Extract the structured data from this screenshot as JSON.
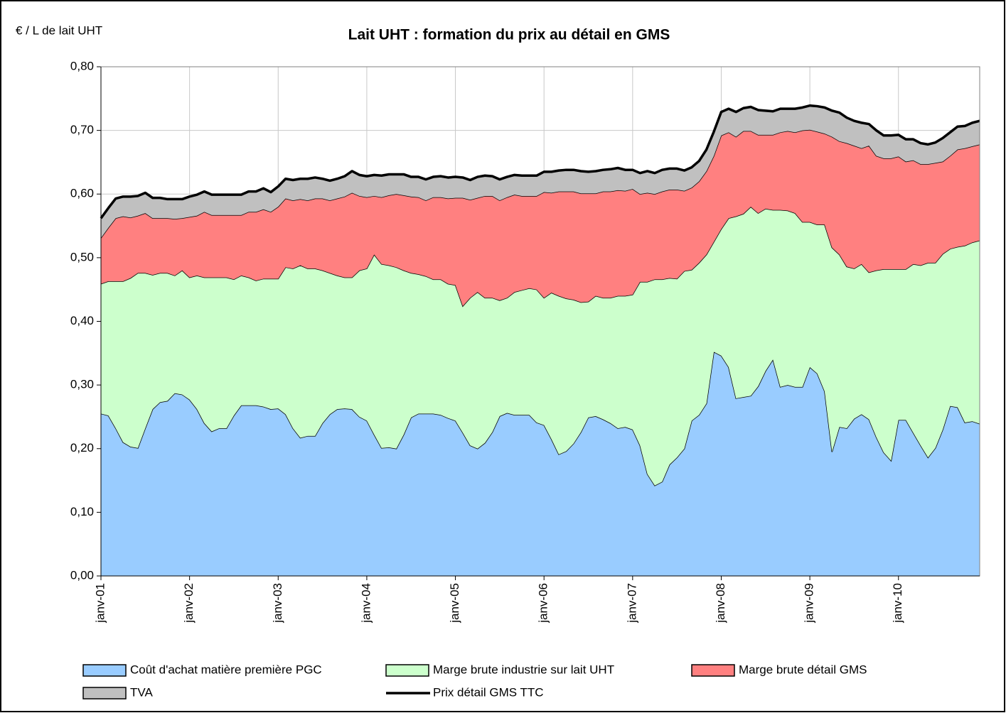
{
  "chart_data": {
    "type": "area",
    "stacked": true,
    "title": "Lait UHT : formation du prix au détail en GMS",
    "y_label": "€ / L de lait UHT",
    "categories": [
      "janv-01",
      null,
      null,
      null,
      null,
      null,
      null,
      null,
      null,
      null,
      null,
      null,
      "janv-02",
      null,
      null,
      null,
      null,
      null,
      null,
      null,
      null,
      null,
      null,
      null,
      "janv-03",
      null,
      null,
      null,
      null,
      null,
      null,
      null,
      null,
      null,
      null,
      null,
      "janv-04",
      null,
      null,
      null,
      null,
      null,
      null,
      null,
      null,
      null,
      null,
      null,
      "janv-05",
      null,
      null,
      null,
      null,
      null,
      null,
      null,
      null,
      null,
      null,
      null,
      "janv-06",
      null,
      null,
      null,
      null,
      null,
      null,
      null,
      null,
      null,
      null,
      null,
      "janv-07",
      null,
      null,
      null,
      null,
      null,
      null,
      null,
      null,
      null,
      null,
      null,
      "janv-08",
      null,
      null,
      null,
      null,
      null,
      null,
      null,
      null,
      null,
      null,
      null,
      "janv-09",
      null,
      null,
      null,
      null,
      null,
      null,
      null,
      null,
      null,
      null,
      null,
      "janv-10",
      null,
      null,
      null,
      null,
      null,
      null,
      null,
      null,
      null,
      null,
      null
    ],
    "ylim": [
      0,
      0.8
    ],
    "yticks": [
      {
        "value": 0,
        "label": "0,00"
      },
      {
        "value": 0.1,
        "label": "0,10"
      },
      {
        "value": 0.2,
        "label": "0,20"
      },
      {
        "value": 0.3,
        "label": "0,30"
      },
      {
        "value": 0.4,
        "label": "0,40"
      },
      {
        "value": 0.5,
        "label": "0,50"
      },
      {
        "value": 0.6,
        "label": "0,60"
      },
      {
        "value": 0.7,
        "label": "0,70"
      },
      {
        "value": 0.8,
        "label": "0,80"
      }
    ],
    "grid": true,
    "legend": "bottom",
    "series": [
      {
        "name": "Coût d'achat matière première PGC",
        "color": "#99ccff",
        "values": [
          0.255,
          0.252,
          0.232,
          0.21,
          0.203,
          0.201,
          0.232,
          0.262,
          0.273,
          0.275,
          0.287,
          0.285,
          0.277,
          0.262,
          0.24,
          0.227,
          0.232,
          0.232,
          0.252,
          0.268,
          0.268,
          0.268,
          0.266,
          0.262,
          0.263,
          0.254,
          0.232,
          0.217,
          0.22,
          0.22,
          0.24,
          0.254,
          0.262,
          0.263,
          0.262,
          0.25,
          0.244,
          0.222,
          0.201,
          0.202,
          0.2,
          0.222,
          0.249,
          0.255,
          0.255,
          0.255,
          0.253,
          0.248,
          0.244,
          0.225,
          0.205,
          0.2,
          0.209,
          0.226,
          0.251,
          0.256,
          0.253,
          0.253,
          0.253,
          0.241,
          0.237,
          0.215,
          0.191,
          0.196,
          0.208,
          0.226,
          0.249,
          0.251,
          0.246,
          0.24,
          0.232,
          0.234,
          0.23,
          0.205,
          0.16,
          0.142,
          0.148,
          0.175,
          0.186,
          0.2,
          0.244,
          0.253,
          0.271,
          0.352,
          0.346,
          0.328,
          0.279,
          0.281,
          0.283,
          0.298,
          0.322,
          0.34,
          0.297,
          0.3,
          0.297,
          0.297,
          0.328,
          0.318,
          0.29,
          0.195,
          0.234,
          0.232,
          0.247,
          0.254,
          0.246,
          0.218,
          0.194,
          0.181,
          0.245,
          0.245,
          0.225,
          0.205,
          0.186,
          0.201,
          0.23,
          0.267,
          0.265,
          0.241,
          0.243,
          0.239
        ]
      },
      {
        "name": "Marge brute industrie sur lait UHT",
        "color": "#ccffcc",
        "values": [
          0.204,
          0.211,
          0.231,
          0.253,
          0.265,
          0.275,
          0.244,
          0.211,
          0.203,
          0.201,
          0.185,
          0.195,
          0.192,
          0.21,
          0.229,
          0.242,
          0.237,
          0.237,
          0.214,
          0.204,
          0.201,
          0.196,
          0.201,
          0.205,
          0.204,
          0.231,
          0.251,
          0.271,
          0.263,
          0.263,
          0.24,
          0.222,
          0.21,
          0.206,
          0.207,
          0.23,
          0.239,
          0.283,
          0.289,
          0.286,
          0.285,
          0.258,
          0.227,
          0.219,
          0.216,
          0.211,
          0.213,
          0.211,
          0.213,
          0.199,
          0.232,
          0.246,
          0.228,
          0.211,
          0.182,
          0.181,
          0.193,
          0.196,
          0.199,
          0.209,
          0.2,
          0.23,
          0.249,
          0.24,
          0.226,
          0.204,
          0.182,
          0.189,
          0.191,
          0.197,
          0.208,
          0.206,
          0.212,
          0.257,
          0.302,
          0.324,
          0.318,
          0.293,
          0.281,
          0.279,
          0.237,
          0.239,
          0.234,
          0.173,
          0.199,
          0.234,
          0.286,
          0.288,
          0.297,
          0.272,
          0.255,
          0.235,
          0.278,
          0.274,
          0.273,
          0.259,
          0.228,
          0.234,
          0.262,
          0.321,
          0.271,
          0.254,
          0.236,
          0.236,
          0.231,
          0.262,
          0.288,
          0.301,
          0.237,
          0.237,
          0.265,
          0.283,
          0.306,
          0.291,
          0.276,
          0.247,
          0.252,
          0.278,
          0.281,
          0.288
        ]
      },
      {
        "name": "Marge brute détail GMS",
        "color": "#ff8080",
        "values": [
          0.072,
          0.084,
          0.099,
          0.102,
          0.095,
          0.09,
          0.094,
          0.089,
          0.086,
          0.086,
          0.089,
          0.082,
          0.095,
          0.094,
          0.103,
          0.098,
          0.098,
          0.098,
          0.101,
          0.095,
          0.103,
          0.108,
          0.109,
          0.105,
          0.113,
          0.108,
          0.107,
          0.104,
          0.107,
          0.11,
          0.113,
          0.114,
          0.121,
          0.127,
          0.133,
          0.117,
          0.112,
          0.092,
          0.105,
          0.11,
          0.115,
          0.118,
          0.12,
          0.121,
          0.119,
          0.129,
          0.129,
          0.134,
          0.137,
          0.17,
          0.154,
          0.148,
          0.16,
          0.16,
          0.157,
          0.158,
          0.153,
          0.148,
          0.145,
          0.147,
          0.166,
          0.157,
          0.164,
          0.168,
          0.17,
          0.171,
          0.17,
          0.161,
          0.167,
          0.167,
          0.166,
          0.165,
          0.166,
          0.138,
          0.14,
          0.134,
          0.138,
          0.139,
          0.14,
          0.126,
          0.129,
          0.128,
          0.131,
          0.135,
          0.147,
          0.135,
          0.125,
          0.13,
          0.119,
          0.123,
          0.116,
          0.118,
          0.122,
          0.125,
          0.127,
          0.144,
          0.145,
          0.146,
          0.143,
          0.174,
          0.178,
          0.194,
          0.193,
          0.182,
          0.199,
          0.18,
          0.174,
          0.174,
          0.177,
          0.169,
          0.163,
          0.159,
          0.155,
          0.157,
          0.145,
          0.146,
          0.153,
          0.153,
          0.151,
          0.151
        ]
      },
      {
        "name": "TVA",
        "color": "#c0c0c0",
        "values": [
          0.031,
          0.031,
          0.031,
          0.031,
          0.033,
          0.031,
          0.032,
          0.032,
          0.032,
          0.03,
          0.031,
          0.03,
          0.032,
          0.033,
          0.032,
          0.032,
          0.032,
          0.032,
          0.032,
          0.032,
          0.032,
          0.032,
          0.033,
          0.031,
          0.032,
          0.031,
          0.032,
          0.032,
          0.034,
          0.033,
          0.031,
          0.031,
          0.031,
          0.032,
          0.034,
          0.033,
          0.033,
          0.033,
          0.034,
          0.033,
          0.031,
          0.033,
          0.031,
          0.032,
          0.033,
          0.032,
          0.033,
          0.033,
          0.033,
          0.032,
          0.031,
          0.033,
          0.032,
          0.031,
          0.033,
          0.032,
          0.031,
          0.032,
          0.032,
          0.032,
          0.032,
          0.033,
          0.033,
          0.034,
          0.034,
          0.035,
          0.034,
          0.035,
          0.034,
          0.035,
          0.035,
          0.033,
          0.03,
          0.033,
          0.034,
          0.033,
          0.034,
          0.033,
          0.033,
          0.032,
          0.032,
          0.032,
          0.034,
          0.038,
          0.037,
          0.037,
          0.039,
          0.036,
          0.038,
          0.039,
          0.038,
          0.037,
          0.037,
          0.035,
          0.037,
          0.036,
          0.038,
          0.04,
          0.041,
          0.041,
          0.045,
          0.04,
          0.039,
          0.04,
          0.034,
          0.04,
          0.036,
          0.036,
          0.034,
          0.035,
          0.033,
          0.033,
          0.031,
          0.032,
          0.037,
          0.037,
          0.036,
          0.035,
          0.037,
          0.037
        ]
      },
      {
        "name": "Prix détail GMS TTC",
        "type": "line",
        "color": "#000000",
        "values": [
          0.562,
          0.578,
          0.593,
          0.596,
          0.596,
          0.597,
          0.602,
          0.594,
          0.594,
          0.592,
          0.592,
          0.592,
          0.596,
          0.599,
          0.604,
          0.599,
          0.599,
          0.599,
          0.599,
          0.599,
          0.604,
          0.604,
          0.609,
          0.603,
          0.612,
          0.624,
          0.622,
          0.624,
          0.624,
          0.626,
          0.624,
          0.621,
          0.624,
          0.628,
          0.636,
          0.63,
          0.628,
          0.63,
          0.629,
          0.631,
          0.631,
          0.631,
          0.627,
          0.627,
          0.623,
          0.627,
          0.628,
          0.626,
          0.627,
          0.626,
          0.622,
          0.627,
          0.629,
          0.628,
          0.623,
          0.627,
          0.63,
          0.629,
          0.629,
          0.629,
          0.635,
          0.635,
          0.637,
          0.638,
          0.638,
          0.636,
          0.635,
          0.636,
          0.638,
          0.639,
          0.641,
          0.638,
          0.638,
          0.633,
          0.636,
          0.633,
          0.638,
          0.64,
          0.64,
          0.637,
          0.642,
          0.652,
          0.67,
          0.698,
          0.729,
          0.734,
          0.729,
          0.735,
          0.737,
          0.732,
          0.731,
          0.73,
          0.734,
          0.734,
          0.734,
          0.736,
          0.739,
          0.738,
          0.736,
          0.731,
          0.728,
          0.72,
          0.715,
          0.712,
          0.71,
          0.7,
          0.692,
          0.692,
          0.693,
          0.686,
          0.686,
          0.68,
          0.678,
          0.681,
          0.688,
          0.697,
          0.706,
          0.707,
          0.712,
          0.715
        ]
      }
    ]
  }
}
